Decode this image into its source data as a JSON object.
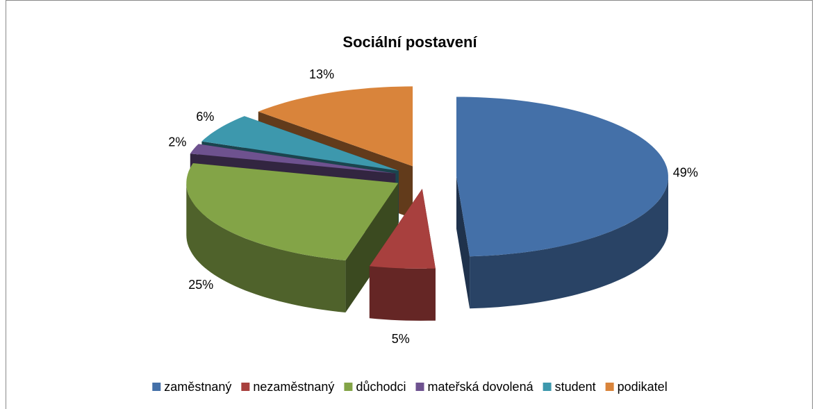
{
  "chart_data": {
    "type": "pie",
    "title": "Sociální postavení",
    "categories": [
      "zaměstnaný",
      "nezaměstnaný",
      "důchodci",
      "mateřská dovolená",
      "student",
      "podikatel"
    ],
    "values": [
      49,
      5,
      25,
      2,
      6,
      13
    ],
    "value_labels": [
      "49%",
      "5%",
      "25%",
      "2%",
      "6%",
      "13%"
    ],
    "colors": [
      "#4470a8",
      "#a8403e",
      "#83a447",
      "#6e528f",
      "#3d98ad",
      "#d9843b"
    ],
    "legend": "bottom"
  }
}
